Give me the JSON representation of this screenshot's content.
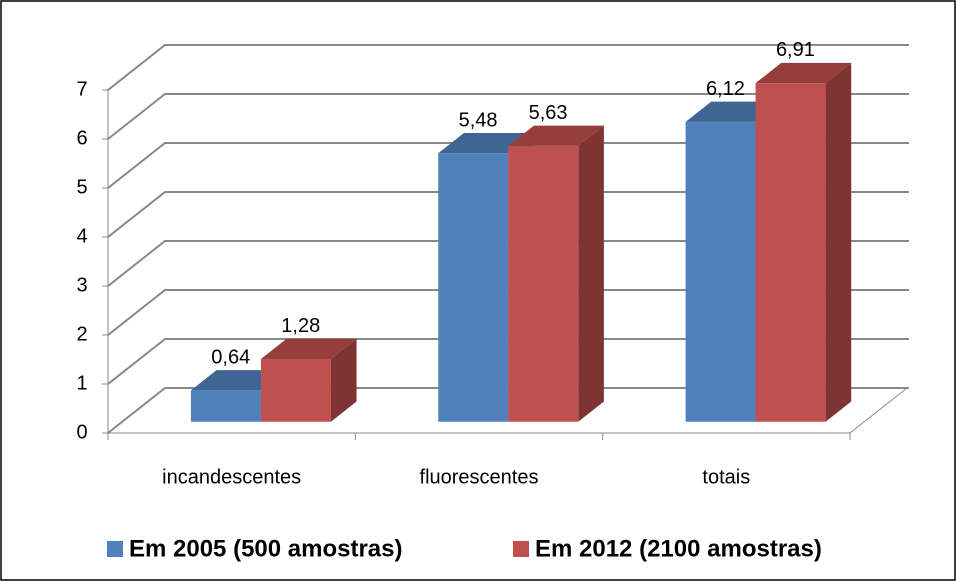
{
  "chart_data": {
    "type": "bar3d",
    "categories": [
      "incandescentes",
      "fluorescentes",
      "totais"
    ],
    "series": [
      {
        "name": "Em 2005 (500 amostras)",
        "color": "#4f81bd",
        "values": [
          0.64,
          5.48,
          6.12
        ],
        "value_labels": [
          "0,64",
          "5,48",
          "6,12"
        ]
      },
      {
        "name": "Em 2012 (2100 amostras)",
        "color": "#c0504d",
        "values": [
          1.28,
          5.63,
          6.91
        ],
        "value_labels": [
          "1,28",
          "5,63",
          "6,91"
        ]
      }
    ],
    "ylim": [
      0,
      7
    ],
    "yticks": [
      0,
      1,
      2,
      3,
      4,
      5,
      6,
      7
    ],
    "grid": true,
    "legend": "bottom"
  }
}
